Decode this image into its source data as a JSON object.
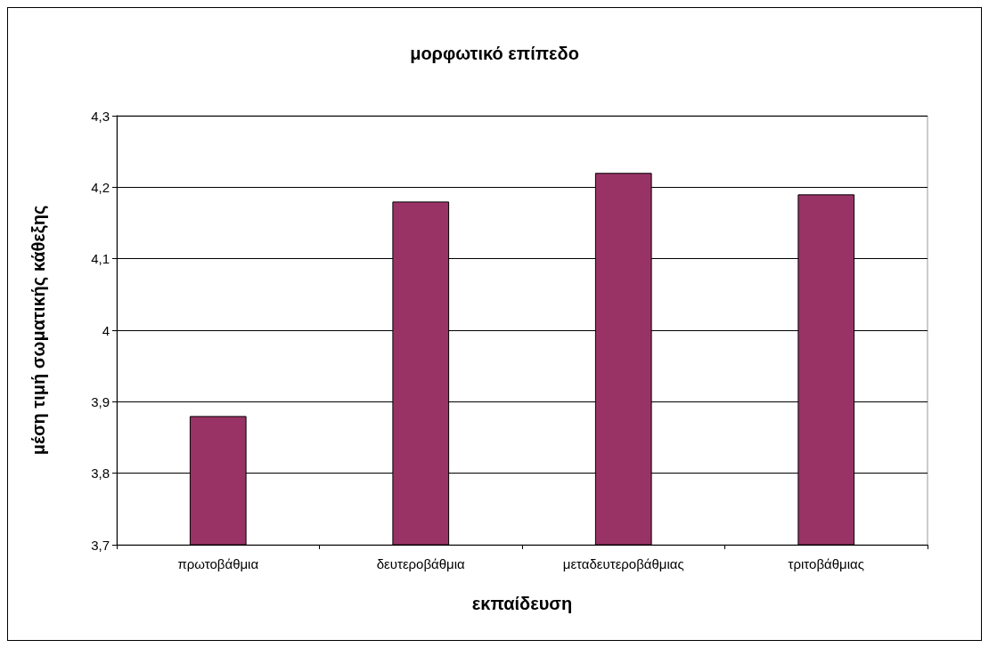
{
  "chart_data": {
    "type": "bar",
    "title": "μορφωτικό επίπεδο",
    "xlabel": "εκπαίδευση",
    "ylabel": "μέση τιμή σωματικής κάθεξης",
    "categories": [
      "πρωτοβάθμια",
      "δευτεροβάθμια",
      "μεταδευτεροβάθμιας",
      "τριτοβάθμιας"
    ],
    "values": [
      3.88,
      4.18,
      4.22,
      4.19
    ],
    "color": "#993366",
    "ylim": [
      3.7,
      4.3
    ],
    "yticks": [
      {
        "value": 3.7,
        "label": "3,7"
      },
      {
        "value": 3.8,
        "label": "3,8"
      },
      {
        "value": 3.9,
        "label": "3,9"
      },
      4,
      {
        "value": 4.1,
        "label": "4,1"
      },
      {
        "value": 4.2,
        "label": "4,2"
      },
      {
        "value": 4.3,
        "label": "4,3"
      }
    ],
    "grid": "y"
  }
}
